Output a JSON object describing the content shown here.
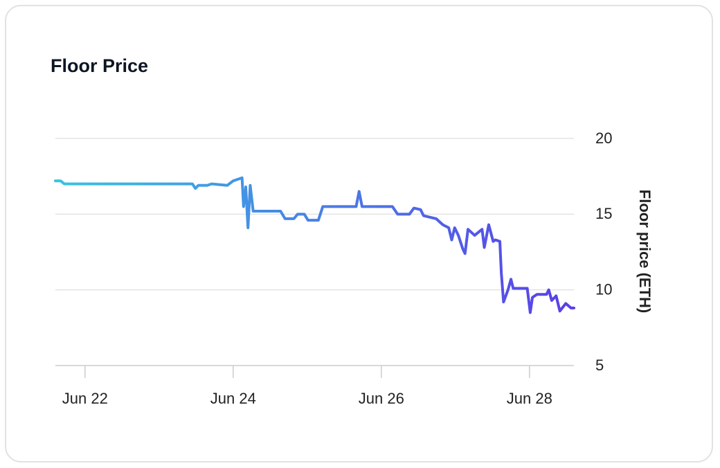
{
  "chart_data": {
    "type": "line",
    "title": "Floor Price",
    "y_label": "Floor price (ETH)",
    "x": [
      21.6,
      21.67,
      21.72,
      22.35,
      23.09,
      23.45,
      23.49,
      23.53,
      23.65,
      23.71,
      23.92,
      24.0,
      24.12,
      24.14,
      24.17,
      24.2,
      24.23,
      24.27,
      24.64,
      24.7,
      24.82,
      24.87,
      24.96,
      25.01,
      25.15,
      25.21,
      25.66,
      25.7,
      25.74,
      26.15,
      26.22,
      26.38,
      26.44,
      26.53,
      26.57,
      26.74,
      26.83,
      26.91,
      26.95,
      26.99,
      27.04,
      27.1,
      27.13,
      27.17,
      27.26,
      27.36,
      27.39,
      27.45,
      27.51,
      27.54,
      27.6,
      27.62,
      27.65,
      27.71,
      27.75,
      27.78,
      27.97,
      28.01,
      28.04,
      28.1,
      28.23,
      28.26,
      28.3,
      28.36,
      28.41,
      28.49,
      28.56,
      28.6
    ],
    "values": [
      17.2,
      17.2,
      17.0,
      17.0,
      17.0,
      17.0,
      16.7,
      16.9,
      16.9,
      17.0,
      16.9,
      17.2,
      17.4,
      15.5,
      16.8,
      14.1,
      16.9,
      15.2,
      15.2,
      14.7,
      14.7,
      15.0,
      15.0,
      14.6,
      14.6,
      15.5,
      15.5,
      16.5,
      15.5,
      15.5,
      15.0,
      15.0,
      15.4,
      15.3,
      14.9,
      14.7,
      14.3,
      14.1,
      13.3,
      14.1,
      13.6,
      12.7,
      12.4,
      14.0,
      13.6,
      14.0,
      12.8,
      14.3,
      13.2,
      13.3,
      13.2,
      11.1,
      9.2,
      10.0,
      10.7,
      10.1,
      10.1,
      8.5,
      9.5,
      9.7,
      9.7,
      10.0,
      9.3,
      9.6,
      8.6,
      9.1,
      8.8,
      8.8
    ],
    "gradient": [
      "#36c4e2",
      "#5a3ee8"
    ],
    "xlim": [
      21.6,
      28.6
    ],
    "xticks": [
      {
        "value": 22,
        "label": "Jun 22"
      },
      {
        "value": 24,
        "label": "Jun 24"
      },
      {
        "value": 26,
        "label": "Jun 26"
      },
      {
        "value": 28,
        "label": "Jun 28"
      }
    ],
    "ylim": [
      5,
      20
    ],
    "yticks": [
      5,
      10,
      15,
      20
    ],
    "grid": true
  }
}
